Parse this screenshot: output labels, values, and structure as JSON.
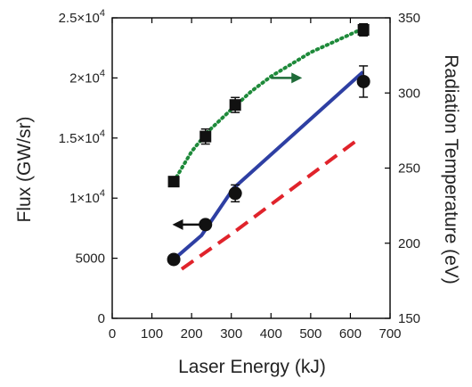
{
  "chart_data": {
    "type": "line",
    "xlabel": "Laser Energy (kJ)",
    "ylabel": "Flux (GW/sr)",
    "y2label": "Radiation Temperature (eV)",
    "xlim": [
      0,
      700
    ],
    "ylim": [
      0,
      25000
    ],
    "y2lim": [
      150,
      350
    ],
    "x_ticks": [
      0,
      100,
      200,
      300,
      400,
      500,
      600,
      700
    ],
    "x_tick_labels": [
      "0",
      "100",
      "200",
      "300",
      "400",
      "500",
      "600",
      "700"
    ],
    "y_ticks": [
      0,
      5000,
      10000,
      15000,
      20000,
      25000
    ],
    "y_tick_labels": [
      {
        "base": "0",
        "exp": ""
      },
      {
        "base": "5000",
        "exp": ""
      },
      {
        "base": "1×10",
        "exp": "4"
      },
      {
        "base": "1.5×10",
        "exp": "4"
      },
      {
        "base": "2×10",
        "exp": "4"
      },
      {
        "base": "2.5×10",
        "exp": "4"
      }
    ],
    "y2_ticks": [
      150,
      200,
      250,
      300,
      350
    ],
    "y2_tick_labels": [
      "150",
      "200",
      "250",
      "300",
      "350"
    ],
    "grid": false,
    "series": [
      {
        "kind": "points",
        "axis": "left",
        "marker": "circle",
        "color": "#111111",
        "x": [
          155,
          235,
          310,
          633
        ],
        "y": [
          4900,
          7800,
          10400,
          19700
        ],
        "yerr": [
          0,
          0,
          700,
          1300
        ]
      },
      {
        "kind": "points",
        "axis": "right",
        "marker": "square",
        "color": "#111111",
        "x": [
          155,
          235,
          310,
          633
        ],
        "y": [
          241,
          271,
          292,
          342
        ],
        "yerr": [
          3,
          5,
          5,
          4
        ]
      },
      {
        "kind": "line",
        "axis": "left",
        "style": "solid",
        "color": "#2e3fa3",
        "x": [
          155,
          225,
          305,
          632
        ],
        "y": [
          4900,
          6900,
          10800,
          20500
        ]
      },
      {
        "kind": "line",
        "axis": "left",
        "style": "dashed",
        "color": "#e0232b",
        "x": [
          175,
          300,
          620
        ],
        "y": [
          4100,
          7000,
          14900
        ]
      },
      {
        "kind": "line",
        "axis": "right",
        "style": "dotted",
        "color": "#1e8a3a",
        "x": [
          155,
          200,
          240,
          300,
          350,
          400,
          450,
          500,
          550,
          600,
          632
        ],
        "y": [
          241,
          261,
          274,
          289,
          301,
          311,
          319,
          327,
          333,
          339,
          343
        ]
      }
    ],
    "annotations": [
      {
        "type": "arrow",
        "axis": "left",
        "direction": "left",
        "color": "#111111",
        "x_from": 225,
        "x_to": 165,
        "y": 7800
      },
      {
        "type": "arrow",
        "axis": "right",
        "direction": "right",
        "color": "#1e6b38",
        "x_from": 400,
        "x_to": 465,
        "y": 310
      }
    ]
  }
}
